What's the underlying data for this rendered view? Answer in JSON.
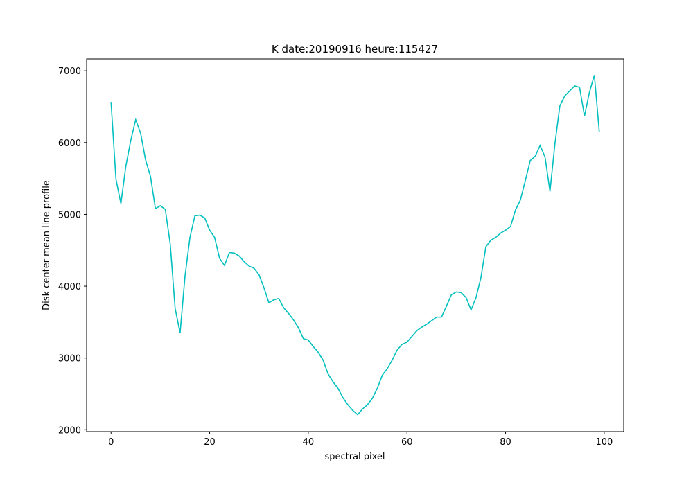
{
  "chart_data": {
    "type": "line",
    "title": "K date:20190916 heure:115427",
    "xlabel": "spectral pixel",
    "ylabel": "Disk center mean line profile",
    "x": [
      0,
      1,
      2,
      3,
      4,
      5,
      6,
      7,
      8,
      9,
      10,
      11,
      12,
      13,
      14,
      15,
      16,
      17,
      18,
      19,
      20,
      21,
      22,
      23,
      24,
      25,
      26,
      27,
      28,
      29,
      30,
      31,
      32,
      33,
      34,
      35,
      36,
      37,
      38,
      39,
      40,
      41,
      42,
      43,
      44,
      45,
      46,
      47,
      48,
      49,
      50,
      51,
      52,
      53,
      54,
      55,
      56,
      57,
      58,
      59,
      60,
      61,
      62,
      63,
      64,
      65,
      66,
      67,
      68,
      69,
      70,
      71,
      72,
      73,
      74,
      75,
      76,
      77,
      78,
      79,
      80,
      81,
      82,
      83,
      84,
      85,
      86,
      87,
      88,
      89,
      90,
      91,
      92,
      93,
      94,
      95,
      96,
      97,
      98,
      99
    ],
    "series": [
      {
        "color": "#00bfbf",
        "values": [
          6566,
          5490,
          5150,
          5670,
          6030,
          6320,
          6130,
          5760,
          5530,
          5080,
          5120,
          5070,
          4590,
          3690,
          3350,
          4140,
          4680,
          4980,
          4990,
          4950,
          4780,
          4680,
          4390,
          4290,
          4470,
          4460,
          4420,
          4340,
          4280,
          4250,
          4160,
          3980,
          3770,
          3810,
          3830,
          3700,
          3620,
          3530,
          3420,
          3270,
          3250,
          3160,
          3080,
          2970,
          2780,
          2670,
          2580,
          2450,
          2350,
          2270,
          2210,
          2290,
          2350,
          2440,
          2580,
          2760,
          2850,
          2970,
          3110,
          3190,
          3220,
          3300,
          3380,
          3430,
          3470,
          3520,
          3570,
          3570,
          3720,
          3880,
          3920,
          3910,
          3840,
          3670,
          3840,
          4120,
          4550,
          4640,
          4680,
          4740,
          4780,
          4830,
          5060,
          5200,
          5470,
          5750,
          5810,
          5960,
          5800,
          5320,
          5980,
          6510,
          6650,
          6720,
          6790,
          6770,
          6370,
          6700,
          6940,
          6150
        ]
      }
    ],
    "xlim": [
      -4.95,
      103.95
    ],
    "xticks": [
      0,
      20,
      40,
      60,
      80,
      100
    ],
    "ylim": [
      1974,
      7166
    ],
    "yticks": [
      2000,
      3000,
      4000,
      5000,
      6000,
      7000
    ],
    "grid": false
  }
}
